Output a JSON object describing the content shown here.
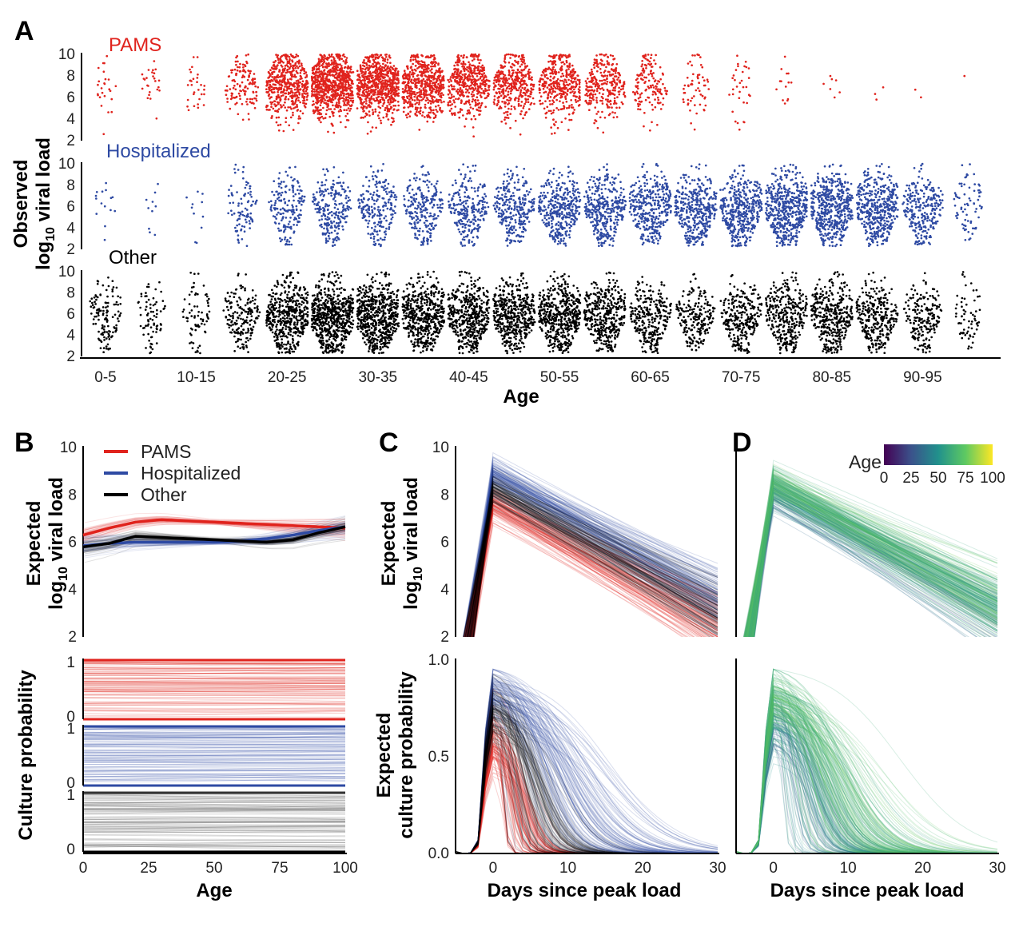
{
  "panels": {
    "A": "A",
    "B": "B",
    "C": "C",
    "D": "D"
  },
  "colors": {
    "pams": "#e0231d",
    "hospitalized": "#2e4aa3",
    "other": "#000000",
    "viridis": [
      "#440154",
      "#3b528b",
      "#21918c",
      "#5ec962",
      "#fde725"
    ]
  },
  "chart_data": [
    {
      "panel": "A",
      "type": "scatter",
      "subtype": "beeswarm",
      "xlabel": "Age",
      "ylabel_line1": "Observed",
      "ylabel_line2_pre": "log",
      "ylabel_line2_sub": "10",
      "ylabel_line2_post": " viral load",
      "ylim": [
        2,
        10
      ],
      "yticks": [
        2,
        4,
        6,
        8,
        10
      ],
      "categories": [
        "0-5",
        "5-10",
        "10-15",
        "15-20",
        "20-25",
        "25-30",
        "30-35",
        "35-40",
        "40-45",
        "45-50",
        "50-55",
        "55-60",
        "60-65",
        "65-70",
        "70-75",
        "75-80",
        "80-85",
        "85-90",
        "90-95",
        "95-100"
      ],
      "tick_labels": [
        "0-5",
        "10-15",
        "20-25",
        "30-35",
        "40-45",
        "50-55",
        "60-65",
        "70-75",
        "80-85",
        "90-95"
      ],
      "groups": [
        {
          "name": "PAMS",
          "approx_counts": [
            45,
            45,
            55,
            230,
            900,
            1400,
            1250,
            1000,
            800,
            650,
            650,
            500,
            260,
            110,
            60,
            25,
            12,
            6,
            3,
            2
          ]
        },
        {
          "name": "Hospitalized",
          "approx_counts": [
            28,
            18,
            20,
            170,
            320,
            420,
            400,
            420,
            450,
            520,
            650,
            650,
            640,
            700,
            780,
            900,
            900,
            780,
            480,
            130
          ]
        },
        {
          "name": "Other",
          "approx_counts": [
            230,
            140,
            130,
            340,
            880,
            1150,
            1100,
            920,
            850,
            880,
            900,
            720,
            520,
            380,
            520,
            600,
            700,
            560,
            360,
            120
          ]
        }
      ]
    },
    {
      "panel": "B",
      "type": "line",
      "xlabel": "Age",
      "ylabel_line1": "Expected",
      "ylabel_line2_pre": "log",
      "ylabel_line2_sub": "10",
      "ylabel_line2_post": " viral load",
      "xlim": [
        0,
        100
      ],
      "xticks": [
        0,
        25,
        50,
        75,
        100
      ],
      "ylim": [
        2,
        10
      ],
      "yticks": [
        2,
        4,
        6,
        8,
        10
      ],
      "legend": "top-left",
      "series": [
        {
          "name": "PAMS",
          "x": [
            0,
            10,
            20,
            30,
            40,
            50,
            60,
            70,
            80,
            90,
            100
          ],
          "values": [
            6.3,
            6.6,
            6.85,
            6.95,
            6.9,
            6.85,
            6.8,
            6.75,
            6.7,
            6.65,
            6.6
          ]
        },
        {
          "name": "Hospitalized",
          "x": [
            0,
            10,
            20,
            30,
            40,
            50,
            60,
            70,
            80,
            90,
            100
          ],
          "values": [
            5.85,
            5.95,
            6.0,
            6.0,
            6.0,
            6.0,
            6.05,
            6.15,
            6.3,
            6.5,
            6.65
          ]
        },
        {
          "name": "Other",
          "x": [
            0,
            10,
            20,
            30,
            40,
            50,
            60,
            70,
            80,
            90,
            100
          ],
          "values": [
            5.8,
            5.95,
            6.25,
            6.2,
            6.15,
            6.1,
            6.05,
            6.0,
            6.1,
            6.4,
            6.65
          ]
        }
      ]
    },
    {
      "panel": "B-lower",
      "type": "area",
      "xlabel": "Age",
      "ylabel": "Culture probability",
      "xlim": [
        0,
        100
      ],
      "xticks": [
        0,
        25,
        50,
        75,
        100
      ],
      "ylim": [
        0,
        1
      ],
      "yticks": [
        0,
        1
      ],
      "series": [
        {
          "name": "PAMS"
        },
        {
          "name": "Hospitalized"
        },
        {
          "name": "Other"
        }
      ]
    },
    {
      "panel": "C",
      "type": "line",
      "xlabel": "Days since peak load",
      "ylabel_line1": "Expected",
      "ylabel_line2_pre": "log",
      "ylabel_line2_sub": "10",
      "ylabel_line2_post": " viral load",
      "xlim": [
        -5,
        30
      ],
      "xticks": [
        0,
        10,
        20,
        30
      ],
      "ylim": [
        2,
        10
      ],
      "yticks": [
        2,
        4,
        6,
        8,
        10
      ],
      "series": [
        {
          "name": "Hospitalized",
          "peak": 8.8,
          "at_30": 3.6
        },
        {
          "name": "Other",
          "peak": 8.2,
          "at_30": 3.0
        },
        {
          "name": "PAMS",
          "peak": 7.6,
          "at_30": 2.4
        }
      ]
    },
    {
      "panel": "C-lower",
      "type": "line",
      "xlabel": "Days since peak load",
      "ylabel_line1": "Expected",
      "ylabel_line2": "culture probability",
      "xlim": [
        -5,
        30
      ],
      "xticks": [
        0,
        10,
        20,
        30
      ],
      "ylim": [
        0,
        1
      ],
      "yticks": [
        "0.0",
        "0.5",
        "1.0"
      ],
      "series": [
        {
          "name": "Hospitalized",
          "peak": 0.85,
          "half_day": 9
        },
        {
          "name": "Other",
          "peak": 0.75,
          "half_day": 5
        },
        {
          "name": "PAMS",
          "peak": 0.6,
          "half_day": 3
        }
      ]
    },
    {
      "panel": "D",
      "type": "line",
      "xlabel": "Days since peak load",
      "xlim": [
        -5,
        30
      ],
      "xticks": [
        0,
        10,
        20,
        30
      ],
      "ylim": [
        2,
        10
      ],
      "colorbar": {
        "label": "Age",
        "ticks": [
          0,
          25,
          50,
          75,
          100
        ],
        "colormap": "viridis"
      }
    },
    {
      "panel": "D-lower",
      "type": "line",
      "xlabel": "Days since peak load",
      "xlim": [
        -5,
        30
      ],
      "xticks": [
        0,
        10,
        20,
        30
      ],
      "ylim": [
        0,
        1
      ]
    }
  ]
}
